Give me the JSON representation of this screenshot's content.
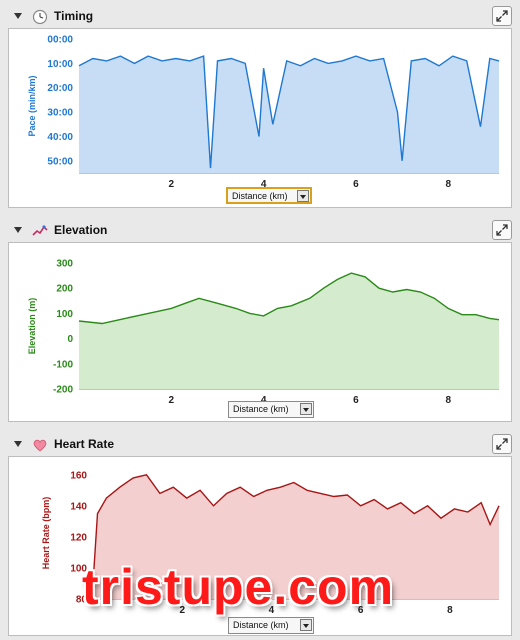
{
  "panels": [
    {
      "id": "timing",
      "title": "Timing",
      "icon": "clock-icon",
      "dropdown": "Distance (km)",
      "chart": {
        "ylabel": "Pace (min/km)",
        "yticks": [
          "00:00",
          "10:00",
          "20:00",
          "30:00",
          "40:00",
          "50:00"
        ],
        "xticks": [
          "2",
          "4",
          "6",
          "8"
        ],
        "color": "#1f78d1",
        "fill": "#c7ddf6"
      }
    },
    {
      "id": "elevation",
      "title": "Elevation",
      "icon": "elevation-icon",
      "dropdown": "Distance (km)",
      "chart": {
        "ylabel": "Elevation (m)",
        "yticks": [
          "300",
          "200",
          "100",
          "0",
          "-100",
          "-200"
        ],
        "xticks": [
          "2",
          "4",
          "6",
          "8"
        ],
        "color": "#2b8a1a",
        "fill": "#d4ebcd"
      }
    },
    {
      "id": "heartrate",
      "title": "Heart Rate",
      "icon": "heart-icon",
      "dropdown": "Distance (km)",
      "chart": {
        "ylabel": "Heart Rate (bpm)",
        "yticks": [
          "160",
          "140",
          "120",
          "100",
          "80"
        ],
        "xticks": [
          "2",
          "4",
          "6",
          "8"
        ],
        "color": "#a81616",
        "fill": "#f3cfcf"
      }
    }
  ],
  "watermark": "tristupe.com",
  "chart_data": [
    {
      "type": "area",
      "title": "Timing",
      "xlabel": "Distance (km)",
      "ylabel": "Pace (min/km)",
      "xlim": [
        0,
        9.1
      ],
      "ylim": [
        0,
        55
      ],
      "y_inverted": true,
      "x": [
        0.0,
        0.3,
        0.6,
        0.9,
        1.2,
        1.5,
        1.8,
        2.1,
        2.4,
        2.7,
        2.85,
        3.0,
        3.3,
        3.6,
        3.9,
        4.0,
        4.2,
        4.5,
        4.8,
        5.1,
        5.4,
        5.7,
        6.0,
        6.3,
        6.6,
        6.9,
        7.0,
        7.2,
        7.5,
        7.8,
        8.1,
        8.4,
        8.7,
        8.9,
        9.1
      ],
      "y": [
        11,
        8,
        9,
        7,
        10,
        7,
        9,
        8,
        9,
        7,
        53,
        9,
        8,
        10,
        40,
        12,
        35,
        9,
        11,
        8,
        10,
        9,
        7,
        9,
        8,
        30,
        50,
        9,
        8,
        11,
        7,
        9,
        36,
        8,
        9
      ]
    },
    {
      "type": "area",
      "title": "Elevation",
      "xlabel": "Distance (km)",
      "ylabel": "Elevation (m)",
      "xlim": [
        0,
        9.1
      ],
      "ylim": [
        -200,
        300
      ],
      "x": [
        0.0,
        0.5,
        1.0,
        1.5,
        2.0,
        2.3,
        2.6,
        3.0,
        3.4,
        3.7,
        4.0,
        4.3,
        4.6,
        5.0,
        5.3,
        5.6,
        5.9,
        6.2,
        6.5,
        6.8,
        7.1,
        7.4,
        7.7,
        8.0,
        8.3,
        8.6,
        8.9,
        9.1
      ],
      "y": [
        70,
        60,
        80,
        100,
        120,
        140,
        160,
        140,
        120,
        100,
        90,
        120,
        130,
        160,
        200,
        235,
        260,
        245,
        200,
        185,
        195,
        185,
        160,
        120,
        95,
        95,
        80,
        75
      ]
    },
    {
      "type": "area",
      "title": "Heart Rate",
      "xlabel": "Distance (km)",
      "ylabel": "Heart Rate (bpm)",
      "xlim": [
        0,
        9.1
      ],
      "ylim": [
        80,
        165
      ],
      "x": [
        0.0,
        0.1,
        0.3,
        0.6,
        0.9,
        1.2,
        1.5,
        1.8,
        2.1,
        2.4,
        2.7,
        3.0,
        3.3,
        3.6,
        3.9,
        4.2,
        4.5,
        4.8,
        5.1,
        5.4,
        5.7,
        6.0,
        6.3,
        6.6,
        6.9,
        7.2,
        7.5,
        7.8,
        8.1,
        8.4,
        8.7,
        8.9,
        9.1
      ],
      "y": [
        90,
        135,
        145,
        152,
        158,
        160,
        148,
        152,
        145,
        150,
        140,
        148,
        152,
        146,
        150,
        152,
        155,
        150,
        148,
        146,
        147,
        140,
        144,
        138,
        142,
        135,
        140,
        132,
        138,
        136,
        142,
        128,
        140
      ]
    }
  ]
}
